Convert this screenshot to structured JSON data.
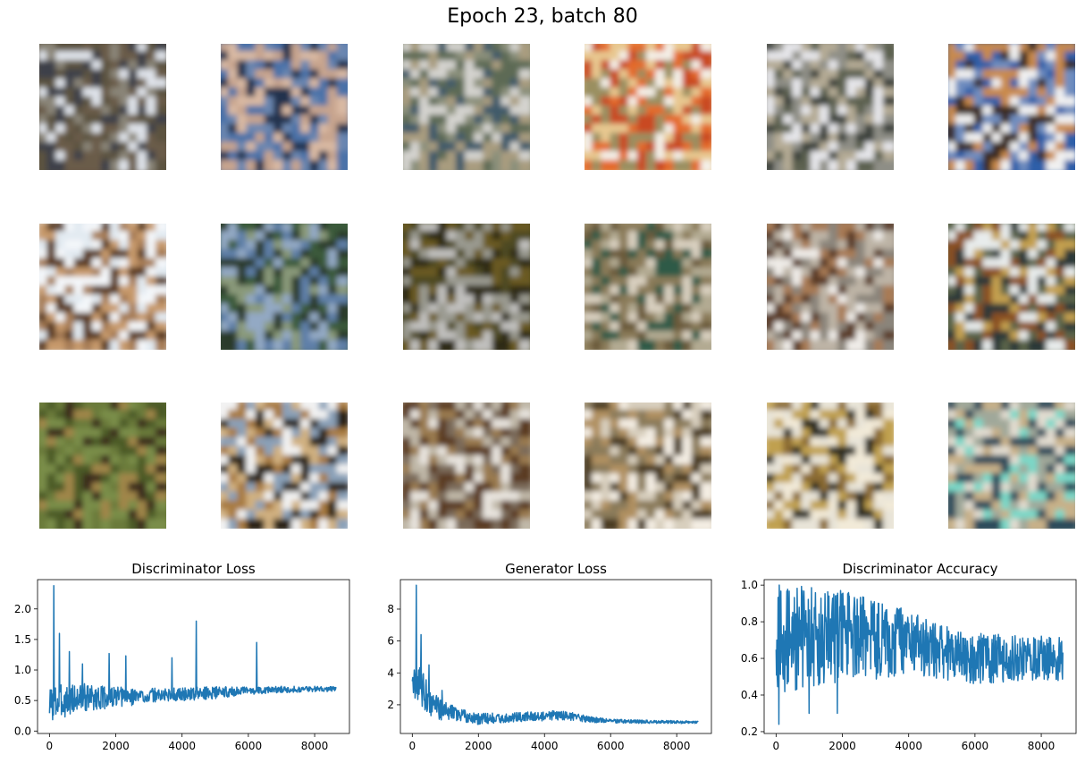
{
  "figure": {
    "suptitle": "Epoch 23, batch 80"
  },
  "samples": [
    {
      "name": "sample-r1c1",
      "palette": [
        "#5b5240",
        "#8a8578",
        "#dfe3ea",
        "#3d3f4a",
        "#6b5c48"
      ]
    },
    {
      "name": "sample-r1c2",
      "palette": [
        "#4b72a8",
        "#c7a48e",
        "#d9b9a3",
        "#23304e",
        "#6a86b0"
      ]
    },
    {
      "name": "sample-r1c3",
      "palette": [
        "#8a8f7a",
        "#d4d3cf",
        "#3f5a6a",
        "#a99c7f",
        "#5d6b55"
      ]
    },
    {
      "name": "sample-r1c4",
      "palette": [
        "#e8c890",
        "#e46a2a",
        "#f4f0e8",
        "#9a8f60",
        "#c94a20"
      ]
    },
    {
      "name": "sample-r1c5",
      "palette": [
        "#8e8e86",
        "#e6e6ea",
        "#3a3f3a",
        "#b4aa94",
        "#5c6050"
      ]
    },
    {
      "name": "sample-r1c6",
      "palette": [
        "#2f5ea8",
        "#6f8dbf",
        "#c98a4c",
        "#f1f1f1",
        "#3a2c22"
      ]
    },
    {
      "name": "sample-r2c1",
      "palette": [
        "#e2eaf1",
        "#a67b55",
        "#5a3a22",
        "#c79a6c",
        "#f4f7fa"
      ]
    },
    {
      "name": "sample-r2c2",
      "palette": [
        "#3b5a3a",
        "#5e7fa8",
        "#8a9a7a",
        "#2a3a2a",
        "#93a9c4"
      ]
    },
    {
      "name": "sample-r2c3",
      "palette": [
        "#4e4a22",
        "#9a9a90",
        "#c0bfbd",
        "#6b5a22",
        "#2e2a14"
      ]
    },
    {
      "name": "sample-r2c4",
      "palette": [
        "#b2aa92",
        "#6a5a3a",
        "#2f5a46",
        "#d9d0c0",
        "#8a7a58"
      ]
    },
    {
      "name": "sample-r2c5",
      "palette": [
        "#8a847a",
        "#efece8",
        "#5a3a28",
        "#bdb4a6",
        "#a87a54"
      ]
    },
    {
      "name": "sample-r2c6",
      "palette": [
        "#5a6448",
        "#c4a050",
        "#2c3838",
        "#e8ecec",
        "#8a5020"
      ]
    },
    {
      "name": "sample-r3c1",
      "palette": [
        "#6a7a3a",
        "#7a8e4a",
        "#3a2a1e",
        "#a0864a",
        "#4c5a28"
      ]
    },
    {
      "name": "sample-r3c2",
      "palette": [
        "#f2f2f2",
        "#a87a40",
        "#2a2218",
        "#d0b080",
        "#8aa0b8"
      ]
    },
    {
      "name": "sample-r3c3",
      "palette": [
        "#c0b8a8",
        "#5a3a20",
        "#9a7a50",
        "#e8e4de",
        "#7a6a5a"
      ]
    },
    {
      "name": "sample-r3c4",
      "palette": [
        "#d8cfbe",
        "#8a7a5a",
        "#f4eee4",
        "#4a3a22",
        "#b09060"
      ]
    },
    {
      "name": "sample-r3c5",
      "palette": [
        "#f2ead8",
        "#c0a050",
        "#2a2a20",
        "#e8e4d8",
        "#8a6a30"
      ]
    },
    {
      "name": "sample-r3c6",
      "palette": [
        "#a0a89a",
        "#c8b088",
        "#2a4a5a",
        "#7ad8c8",
        "#e2dcd0"
      ]
    }
  ],
  "chart_data": [
    {
      "type": "line",
      "title": "Discriminator Loss",
      "xlabel": "",
      "ylabel": "",
      "xlim": [
        -360,
        9050
      ],
      "ylim": [
        -0.04,
        2.48
      ],
      "xticks": [
        0,
        2000,
        4000,
        6000,
        8000
      ],
      "yticks": [
        0.0,
        0.5,
        1.0,
        1.5,
        2.0
      ],
      "ytick_labels": [
        "0.0",
        "0.5",
        "1.0",
        "1.5",
        "2.0"
      ],
      "color": "#1f77b4",
      "n_points": 8656,
      "trend": [
        [
          0,
          0.45
        ],
        [
          500,
          0.5
        ],
        [
          1000,
          0.55
        ],
        [
          2000,
          0.55
        ],
        [
          3000,
          0.58
        ],
        [
          4000,
          0.6
        ],
        [
          5000,
          0.63
        ],
        [
          6000,
          0.66
        ],
        [
          7000,
          0.68
        ],
        [
          8000,
          0.69
        ],
        [
          8656,
          0.69
        ]
      ],
      "spread": [
        [
          0,
          0.3
        ],
        [
          1500,
          0.2
        ],
        [
          3000,
          0.12
        ],
        [
          5000,
          0.1
        ],
        [
          6000,
          0.06
        ],
        [
          8656,
          0.04
        ]
      ],
      "spikes": [
        [
          130,
          2.38
        ],
        [
          300,
          1.6
        ],
        [
          600,
          1.3
        ],
        [
          1000,
          1.1
        ],
        [
          1800,
          1.27
        ],
        [
          2300,
          1.23
        ],
        [
          3700,
          1.2
        ],
        [
          4430,
          1.8
        ],
        [
          6250,
          1.45
        ]
      ],
      "grid": false
    },
    {
      "type": "line",
      "title": "Generator Loss",
      "xlabel": "",
      "ylabel": "",
      "xlim": [
        -360,
        9050
      ],
      "ylim": [
        0.2,
        9.85
      ],
      "xticks": [
        0,
        2000,
        4000,
        6000,
        8000
      ],
      "yticks": [
        2,
        4,
        6,
        8
      ],
      "ytick_labels": [
        "2",
        "4",
        "6",
        "8"
      ],
      "color": "#1f77b4",
      "n_points": 8656,
      "trend": [
        [
          0,
          2.5
        ],
        [
          100,
          3.5
        ],
        [
          300,
          3.0
        ],
        [
          600,
          2.0
        ],
        [
          1000,
          1.6
        ],
        [
          2000,
          1.1
        ],
        [
          3000,
          1.2
        ],
        [
          4000,
          1.3
        ],
        [
          4500,
          1.35
        ],
        [
          5500,
          1.05
        ],
        [
          6500,
          0.95
        ],
        [
          8656,
          0.9
        ]
      ],
      "spread": [
        [
          0,
          1.5
        ],
        [
          600,
          0.8
        ],
        [
          1500,
          0.4
        ],
        [
          3000,
          0.3
        ],
        [
          4500,
          0.3
        ],
        [
          6000,
          0.12
        ],
        [
          8656,
          0.08
        ]
      ],
      "spikes": [
        [
          120,
          9.5
        ],
        [
          260,
          6.4
        ],
        [
          500,
          4.5
        ],
        [
          900,
          2.9
        ]
      ],
      "grid": false
    },
    {
      "type": "line",
      "title": "Discriminator Accuracy",
      "xlabel": "",
      "ylabel": "",
      "xlim": [
        -360,
        9050
      ],
      "ylim": [
        0.19,
        1.03
      ],
      "xticks": [
        0,
        2000,
        4000,
        6000,
        8000
      ],
      "yticks": [
        0.2,
        0.4,
        0.6,
        0.8,
        1.0
      ],
      "ytick_labels": [
        "0.2",
        "0.4",
        "0.6",
        "0.8",
        "1.0"
      ],
      "color": "#1f77b4",
      "n_points": 8656,
      "trend": [
        [
          0,
          0.7
        ],
        [
          1000,
          0.72
        ],
        [
          2000,
          0.72
        ],
        [
          3000,
          0.7
        ],
        [
          4000,
          0.69
        ],
        [
          5000,
          0.63
        ],
        [
          6000,
          0.6
        ],
        [
          7000,
          0.6
        ],
        [
          8656,
          0.6
        ]
      ],
      "spread": [
        [
          0,
          0.3
        ],
        [
          2000,
          0.25
        ],
        [
          4000,
          0.18
        ],
        [
          5000,
          0.15
        ],
        [
          8656,
          0.12
        ]
      ],
      "spikes": [
        [
          80,
          0.24
        ],
        [
          1000,
          0.3
        ],
        [
          1850,
          0.3
        ],
        [
          100,
          1.0
        ]
      ],
      "grid": false
    }
  ]
}
